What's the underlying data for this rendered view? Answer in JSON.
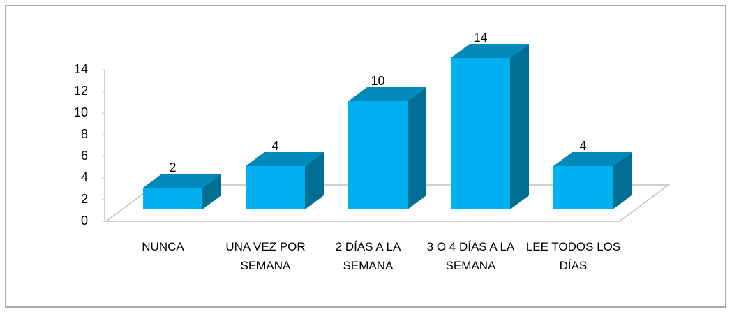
{
  "chart_data": {
    "type": "bar3d",
    "categories": [
      "NUNCA",
      "UNA VEZ POR SEMANA",
      "2 DÍAS A LA SEMANA",
      "3 O 4 DÍAS A LA SEMANA",
      "LEE TODOS LOS DÍAS"
    ],
    "values": [
      2,
      4,
      10,
      14,
      4
    ],
    "color": "#00b0f0",
    "ylim": [
      0,
      14
    ],
    "yticks": [
      0,
      2,
      4,
      6,
      8,
      10,
      12,
      14
    ],
    "grid": false
  }
}
